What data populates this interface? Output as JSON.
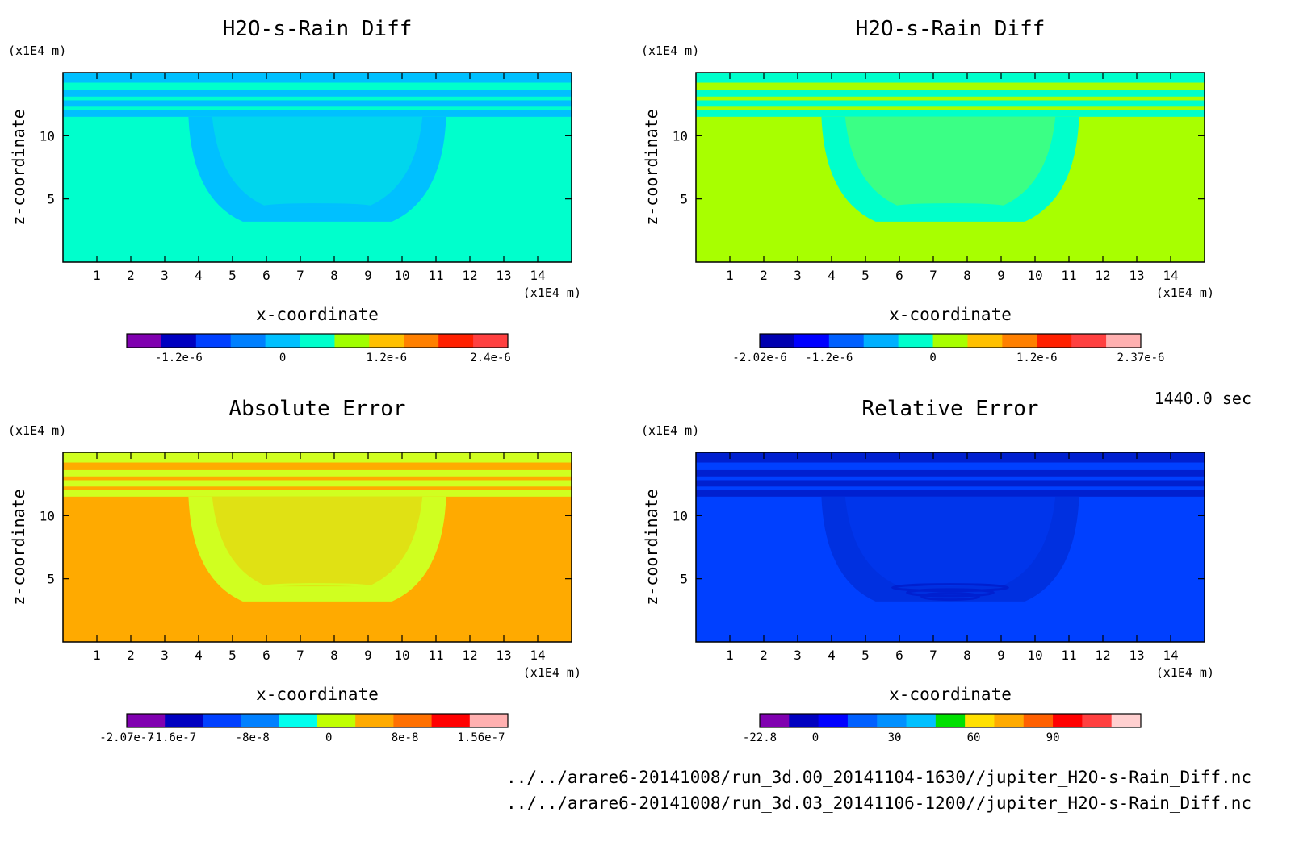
{
  "time_label": "1440.0 sec",
  "files": [
    "../../arare6-20141008/run_3d.00_20141104-1630//jupiter_H2O-s-Rain_Diff.nc",
    "../../arare6-20141008/run_3d.03_20141106-1200//jupiter_H2O-s-Rain_Diff.nc"
  ],
  "chart_data": [
    {
      "type": "heatmap",
      "title": "H2O-s-Rain_Diff",
      "xlabel": "x-coordinate",
      "ylabel": "z-coordinate",
      "x_unit": "(x1E4 m)",
      "y_unit": "(x1E4 m)",
      "xlim": [
        0,
        15
      ],
      "ylim": [
        0,
        15
      ],
      "x_ticks": [
        1,
        2,
        3,
        4,
        5,
        6,
        7,
        8,
        9,
        10,
        11,
        12,
        13,
        14
      ],
      "y_ticks": [
        5,
        10
      ],
      "background_color": "#00ffcc",
      "band_color": "#00c0ff",
      "blob_color": "#00c0ff",
      "colorbar": {
        "colors": [
          "#8000b0",
          "#0000c0",
          "#0040ff",
          "#0080ff",
          "#00c0ff",
          "#00ffcc",
          "#a0ff00",
          "#ffc000",
          "#ff8000",
          "#ff2000",
          "#ff4040"
        ],
        "tick_labels": [
          "-1.2e-6",
          "0",
          "1.2e-6",
          "2.4e-6"
        ],
        "tick_positions": [
          1.5,
          4.5,
          7.5,
          10.5
        ]
      }
    },
    {
      "type": "heatmap",
      "title": "H2O-s-Rain_Diff",
      "xlabel": "x-coordinate",
      "ylabel": "z-coordinate",
      "x_unit": "(x1E4 m)",
      "y_unit": "(x1E4 m)",
      "xlim": [
        0,
        15
      ],
      "ylim": [
        0,
        15
      ],
      "x_ticks": [
        1,
        2,
        3,
        4,
        5,
        6,
        7,
        8,
        9,
        10,
        11,
        12,
        13,
        14
      ],
      "y_ticks": [
        5,
        10
      ],
      "background_color": "#a8ff00",
      "band_color": "#00ffcc",
      "blob_color": "#00ffcc",
      "colorbar": {
        "colors": [
          "#0000b0",
          "#0000ff",
          "#0060ff",
          "#00b0ff",
          "#00ffcc",
          "#a8ff00",
          "#ffc000",
          "#ff8000",
          "#ff2000",
          "#ff4040",
          "#ffb0b0"
        ],
        "tick_labels": [
          "-2.02e-6",
          "-1.2e-6",
          "0",
          "1.2e-6",
          "2.37e-6"
        ],
        "tick_positions": [
          0,
          2,
          5,
          8,
          11
        ]
      }
    },
    {
      "type": "heatmap",
      "title": "Absolute Error",
      "xlabel": "x-coordinate",
      "ylabel": "z-coordinate",
      "x_unit": "(x1E4 m)",
      "y_unit": "(x1E4 m)",
      "xlim": [
        0,
        15
      ],
      "ylim": [
        0,
        15
      ],
      "x_ticks": [
        1,
        2,
        3,
        4,
        5,
        6,
        7,
        8,
        9,
        10,
        11,
        12,
        13,
        14
      ],
      "y_ticks": [
        5,
        10
      ],
      "background_color": "#ffaa00",
      "band_color": "#d0ff20",
      "blob_color": "#d0ff20",
      "colorbar": {
        "colors": [
          "#8000b0",
          "#0000c0",
          "#0040ff",
          "#0080ff",
          "#00ffee",
          "#c0ff00",
          "#ffaa00",
          "#ff7000",
          "#ff0000",
          "#ffb0b0"
        ],
        "tick_labels": [
          "-2.07e-7",
          "-1.6e-7",
          "-8e-8",
          "0",
          "8e-8",
          "1.56e-7"
        ],
        "tick_positions": [
          0,
          1.2,
          3.3,
          5.3,
          7.3,
          9.3
        ]
      }
    },
    {
      "type": "heatmap",
      "title": "Relative Error",
      "xlabel": "x-coordinate",
      "ylabel": "z-coordinate",
      "x_unit": "(x1E4 m)",
      "y_unit": "(x1E4 m)",
      "xlim": [
        0,
        15
      ],
      "ylim": [
        0,
        15
      ],
      "x_ticks": [
        1,
        2,
        3,
        4,
        5,
        6,
        7,
        8,
        9,
        10,
        11,
        12,
        13,
        14
      ],
      "y_ticks": [
        5,
        10
      ],
      "background_color": "#0040ff",
      "band_color": "#0020d0",
      "blob_color": "#0030e0",
      "colorbar": {
        "colors": [
          "#8000b0",
          "#0000c0",
          "#0000ff",
          "#0060ff",
          "#0090ff",
          "#00c0ff",
          "#00e000",
          "#ffe000",
          "#ffaa00",
          "#ff6000",
          "#ff0000",
          "#ff4040",
          "#ffd0d0"
        ],
        "tick_labels": [
          "-22.8",
          "0",
          "30",
          "60",
          "90"
        ],
        "tick_positions": [
          0,
          1.9,
          4.6,
          7.3,
          10.0
        ]
      }
    }
  ]
}
